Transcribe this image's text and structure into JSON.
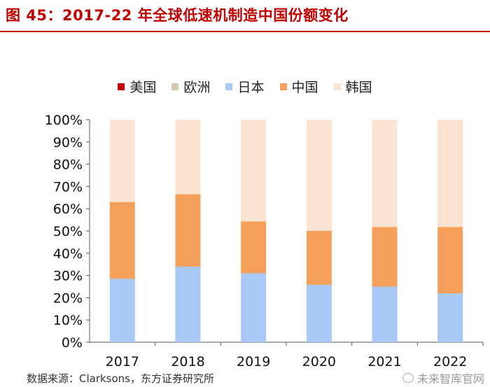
{
  "title": "图 45：2017-22 年全球低速机制造中国份额变化",
  "chart_data": {
    "type": "bar",
    "stacked": true,
    "categories": [
      "2017",
      "2018",
      "2019",
      "2020",
      "2021",
      "2022"
    ],
    "series": [
      {
        "name": "美国",
        "color": "#c00000",
        "values": [
          0,
          0,
          0,
          0,
          0,
          0
        ]
      },
      {
        "name": "欧洲",
        "color": "#d6c9b0",
        "values": [
          0,
          0,
          0,
          0,
          0,
          0
        ]
      },
      {
        "name": "日本",
        "color": "#a9c8f5",
        "values": [
          28.5,
          34,
          31,
          25.8,
          25,
          22
        ]
      },
      {
        "name": "中国",
        "color": "#f5a05a",
        "values": [
          34.5,
          32.5,
          23.3,
          24.2,
          26.8,
          29.8
        ]
      },
      {
        "name": "韩国",
        "color": "#fbe3d2",
        "values": [
          37,
          33.5,
          45.7,
          50,
          48.2,
          48.2
        ]
      }
    ],
    "ylim": [
      0,
      100
    ],
    "yticks": [
      "0%",
      "10%",
      "20%",
      "30%",
      "40%",
      "50%",
      "60%",
      "70%",
      "80%",
      "90%",
      "100%"
    ],
    "xlabel": "",
    "ylabel": "",
    "legend": "top-center",
    "grid": false
  },
  "source": "数据来源：Clarksons，东方证券研究所",
  "watermark": "未来智库官网"
}
